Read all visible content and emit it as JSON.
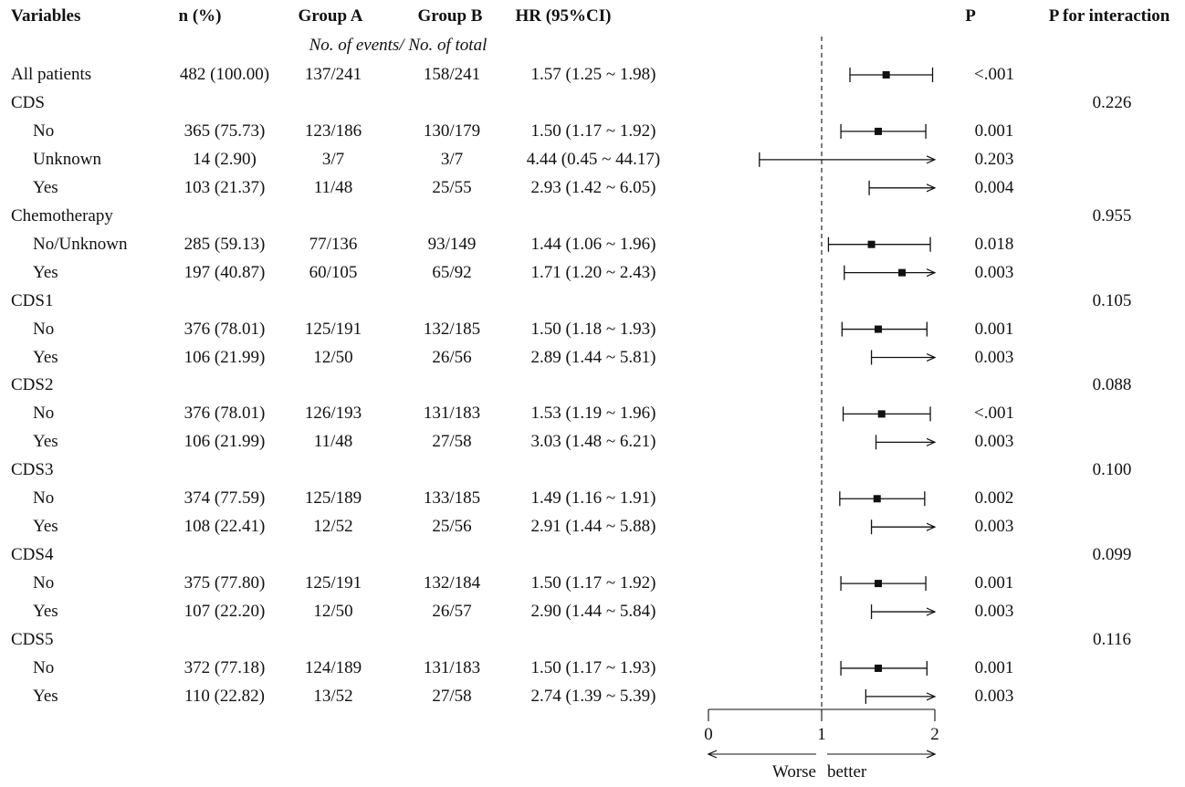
{
  "headers": {
    "variables": "Variables",
    "n_pct": "n (%)",
    "group_a": "Group A",
    "group_b": "Group B",
    "hr": "HR (95%CI)",
    "p": "P",
    "p_interaction": "P for interaction",
    "subheader": "No. of events/ No. of total"
  },
  "chart_data": {
    "type": "forest",
    "x_axis": {
      "min": 0,
      "max": 2,
      "ticks": [
        "0",
        "1",
        "2"
      ],
      "reference": 1
    },
    "direction_labels": {
      "left": "Worse",
      "right": "better"
    },
    "rows": [
      {
        "label": "All patients",
        "indent": false,
        "n": "482 (100.00)",
        "a": "137/241",
        "b": "158/241",
        "hr_text": "1.57 (1.25 ~ 1.98)",
        "hr": 1.57,
        "lo": 1.25,
        "hi": 1.98,
        "p": "<.001",
        "pint": ""
      },
      {
        "label": "CDS",
        "indent": false,
        "header": true,
        "pint": "0.226"
      },
      {
        "label": "No",
        "indent": true,
        "n": "365 (75.73)",
        "a": "123/186",
        "b": "130/179",
        "hr_text": "1.50 (1.17 ~ 1.92)",
        "hr": 1.5,
        "lo": 1.17,
        "hi": 1.92,
        "p": "0.001",
        "pint": ""
      },
      {
        "label": "Unknown",
        "indent": true,
        "n": "14 (2.90)",
        "a": "3/7",
        "b": "3/7",
        "hr_text": "4.44 (0.45 ~ 44.17)",
        "hr": 4.44,
        "lo": 0.45,
        "hi": 44.17,
        "p": "0.203",
        "pint": ""
      },
      {
        "label": "Yes",
        "indent": true,
        "n": "103 (21.37)",
        "a": "11/48",
        "b": "25/55",
        "hr_text": "2.93 (1.42 ~ 6.05)",
        "hr": 2.93,
        "lo": 1.42,
        "hi": 6.05,
        "p": "0.004",
        "pint": ""
      },
      {
        "label": "Chemotherapy",
        "indent": false,
        "header": true,
        "pint": "0.955"
      },
      {
        "label": "No/Unknown",
        "indent": true,
        "n": "285 (59.13)",
        "a": "77/136",
        "b": "93/149",
        "hr_text": "1.44 (1.06 ~ 1.96)",
        "hr": 1.44,
        "lo": 1.06,
        "hi": 1.96,
        "p": "0.018",
        "pint": ""
      },
      {
        "label": "Yes",
        "indent": true,
        "n": "197 (40.87)",
        "a": "60/105",
        "b": "65/92",
        "hr_text": "1.71 (1.20 ~ 2.43)",
        "hr": 1.71,
        "lo": 1.2,
        "hi": 2.43,
        "p": "0.003",
        "pint": ""
      },
      {
        "label": "CDS1",
        "indent": false,
        "header": true,
        "pint": "0.105"
      },
      {
        "label": "No",
        "indent": true,
        "n": "376 (78.01)",
        "a": "125/191",
        "b": "132/185",
        "hr_text": "1.50 (1.18 ~ 1.93)",
        "hr": 1.5,
        "lo": 1.18,
        "hi": 1.93,
        "p": "0.001",
        "pint": ""
      },
      {
        "label": "Yes",
        "indent": true,
        "n": "106 (21.99)",
        "a": "12/50",
        "b": "26/56",
        "hr_text": "2.89 (1.44 ~ 5.81)",
        "hr": 2.89,
        "lo": 1.44,
        "hi": 5.81,
        "p": "0.003",
        "pint": ""
      },
      {
        "label": "CDS2",
        "indent": false,
        "header": true,
        "pint": "0.088"
      },
      {
        "label": "No",
        "indent": true,
        "n": "376 (78.01)",
        "a": "126/193",
        "b": "131/183",
        "hr_text": "1.53 (1.19 ~ 1.96)",
        "hr": 1.53,
        "lo": 1.19,
        "hi": 1.96,
        "p": "<.001",
        "pint": ""
      },
      {
        "label": "Yes",
        "indent": true,
        "n": "106 (21.99)",
        "a": "11/48",
        "b": "27/58",
        "hr_text": "3.03 (1.48 ~ 6.21)",
        "hr": 3.03,
        "lo": 1.48,
        "hi": 6.21,
        "p": "0.003",
        "pint": ""
      },
      {
        "label": "CDS3",
        "indent": false,
        "header": true,
        "pint": "0.100"
      },
      {
        "label": "No",
        "indent": true,
        "n": "374 (77.59)",
        "a": "125/189",
        "b": "133/185",
        "hr_text": "1.49 (1.16 ~ 1.91)",
        "hr": 1.49,
        "lo": 1.16,
        "hi": 1.91,
        "p": "0.002",
        "pint": ""
      },
      {
        "label": "Yes",
        "indent": true,
        "n": "108 (22.41)",
        "a": "12/52",
        "b": "25/56",
        "hr_text": "2.91 (1.44 ~ 5.88)",
        "hr": 2.91,
        "lo": 1.44,
        "hi": 5.88,
        "p": "0.003",
        "pint": ""
      },
      {
        "label": "CDS4",
        "indent": false,
        "header": true,
        "pint": "0.099"
      },
      {
        "label": "No",
        "indent": true,
        "n": "375 (77.80)",
        "a": "125/191",
        "b": "132/184",
        "hr_text": "1.50 (1.17 ~ 1.92)",
        "hr": 1.5,
        "lo": 1.17,
        "hi": 1.92,
        "p": "0.001",
        "pint": ""
      },
      {
        "label": "Yes",
        "indent": true,
        "n": "107 (22.20)",
        "a": "12/50",
        "b": "26/57",
        "hr_text": "2.90 (1.44 ~ 5.84)",
        "hr": 2.9,
        "lo": 1.44,
        "hi": 5.84,
        "p": "0.003",
        "pint": ""
      },
      {
        "label": "CDS5",
        "indent": false,
        "header": true,
        "pint": "0.116"
      },
      {
        "label": "No",
        "indent": true,
        "n": "372 (77.18)",
        "a": "124/189",
        "b": "131/183",
        "hr_text": "1.50 (1.17 ~ 1.93)",
        "hr": 1.5,
        "lo": 1.17,
        "hi": 1.93,
        "p": "0.001",
        "pint": ""
      },
      {
        "label": "Yes",
        "indent": true,
        "n": "110 (22.82)",
        "a": "13/52",
        "b": "27/58",
        "hr_text": "2.74 (1.39 ~ 5.39)",
        "hr": 2.74,
        "lo": 1.39,
        "hi": 5.39,
        "p": "0.003",
        "pint": ""
      }
    ]
  }
}
